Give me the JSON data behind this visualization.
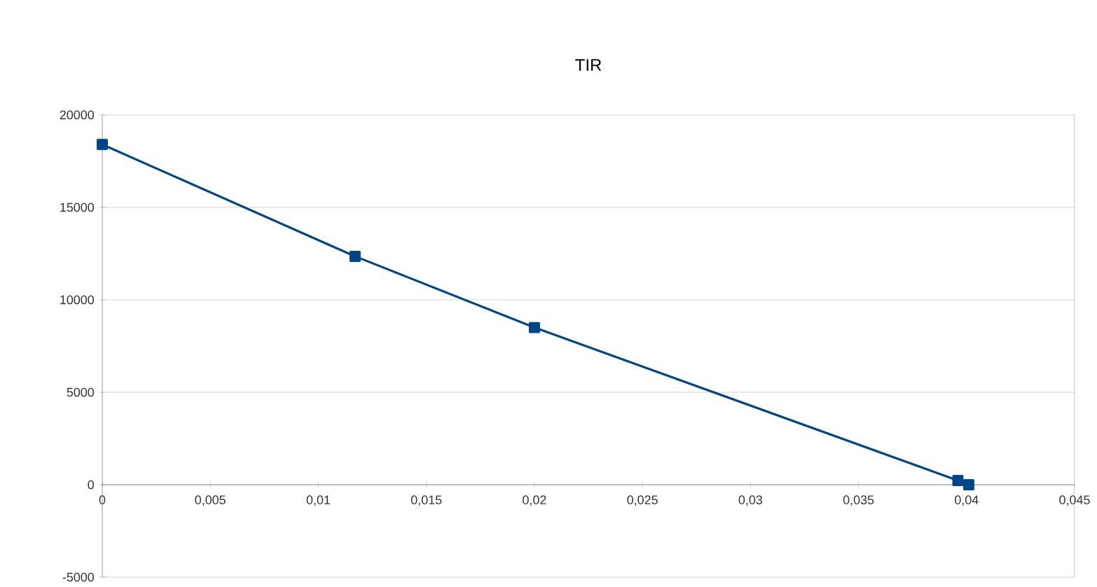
{
  "chart_data": {
    "type": "line",
    "title": "TIR",
    "x": [
      0,
      0.0117,
      0.02,
      0.0396,
      0.0401
    ],
    "series": [
      {
        "color": "#004586",
        "values": [
          18400,
          12350,
          8500,
          230,
          0
        ]
      }
    ],
    "xlim": [
      0,
      0.045
    ],
    "ylim": [
      -5000,
      20000
    ],
    "xticks": [
      0,
      {
        "value": 0.005,
        "label": "0,005"
      },
      {
        "value": 0.01,
        "label": "0,01"
      },
      {
        "value": 0.015,
        "label": "0,015"
      },
      {
        "value": 0.02,
        "label": "0,02"
      },
      {
        "value": 0.025,
        "label": "0,025"
      },
      {
        "value": 0.03,
        "label": "0,03"
      },
      {
        "value": 0.035,
        "label": "0,035"
      },
      {
        "value": 0.04,
        "label": "0,04"
      },
      {
        "value": 0.045,
        "label": "0,045"
      }
    ],
    "yticks": [
      -5000,
      0,
      5000,
      10000,
      15000,
      20000
    ],
    "grid": "y",
    "marker": "square",
    "line_style": "solid"
  }
}
